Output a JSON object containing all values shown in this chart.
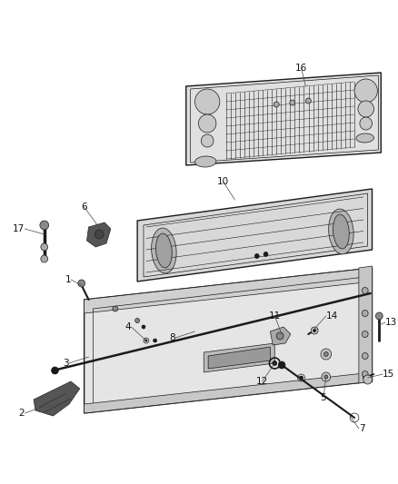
{
  "background_color": "#ffffff",
  "fig_width": 4.38,
  "fig_height": 5.33,
  "dpi": 100,
  "line_color": "#1a1a1a",
  "label_fontsize": 7.5,
  "label_color": "#111111"
}
